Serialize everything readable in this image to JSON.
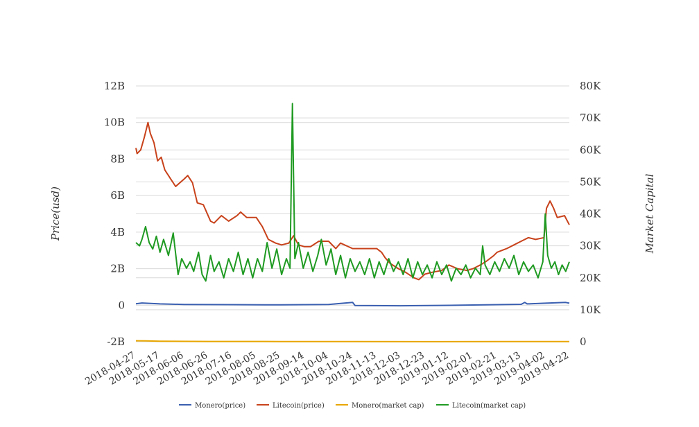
{
  "chart_data": {
    "type": "line",
    "title": "",
    "x": {
      "start_date": "2018-04-27",
      "end_date": "2019-04-22",
      "tick_labels": [
        "2018-04-27",
        "2018-05-17",
        "2018-06-06",
        "2018-06-26",
        "2018-07-16",
        "2018-08-05",
        "2018-08-25",
        "2018-09-14",
        "2018-10-04",
        "2018-10-24",
        "2018-11-13",
        "2018-12-03",
        "2018-12-23",
        "2019-01-12",
        "2019-02-01",
        "2019-02-21",
        "2019-03-13",
        "2019-04-02",
        "2019-04-22"
      ]
    },
    "y_left": {
      "label": "Price(usd)",
      "range": [
        -2000000000,
        12000000000
      ],
      "ticks": [
        -2000000000,
        0,
        2000000000,
        4000000000,
        6000000000,
        8000000000,
        10000000000,
        12000000000
      ],
      "tick_labels": [
        "-2B",
        "0",
        "2B",
        "4B",
        "6B",
        "8B",
        "10B",
        "12B"
      ]
    },
    "y_right": {
      "label": "Market Capital",
      "range": [
        0,
        80000
      ],
      "ticks": [
        0,
        10000,
        20000,
        30000,
        40000,
        50000,
        60000,
        70000,
        80000
      ],
      "tick_labels": [
        "0",
        "10K",
        "20K",
        "30K",
        "40K",
        "50K",
        "60K",
        "70K",
        "80K"
      ]
    },
    "grid": true,
    "legend_position": "bottom",
    "series": [
      {
        "name": "Monero(price)",
        "axis": "left",
        "color": "#3a5fb0",
        "points": [
          [
            "2018-04-27",
            80000000
          ],
          [
            "2018-05-02",
            120000000
          ],
          [
            "2018-05-17",
            70000000
          ],
          [
            "2018-06-06",
            40000000
          ],
          [
            "2018-07-16",
            30000000
          ],
          [
            "2018-08-25",
            20000000
          ],
          [
            "2018-10-04",
            40000000
          ],
          [
            "2018-10-24",
            150000000
          ],
          [
            "2018-10-26",
            -20000000
          ],
          [
            "2018-12-03",
            -30000000
          ],
          [
            "2019-01-12",
            -10000000
          ],
          [
            "2019-02-21",
            30000000
          ],
          [
            "2019-03-13",
            50000000
          ],
          [
            "2019-03-16",
            150000000
          ],
          [
            "2019-03-18",
            70000000
          ],
          [
            "2019-04-02",
            110000000
          ],
          [
            "2019-04-19",
            150000000
          ],
          [
            "2019-04-22",
            110000000
          ]
        ]
      },
      {
        "name": "Litecoin(price)",
        "axis": "left",
        "color": "#c8421b",
        "points": [
          [
            "2018-04-27",
            8600000000
          ],
          [
            "2018-04-28",
            8300000000
          ],
          [
            "2018-05-01",
            8500000000
          ],
          [
            "2018-05-04",
            9200000000
          ],
          [
            "2018-05-07",
            10000000000
          ],
          [
            "2018-05-09",
            9400000000
          ],
          [
            "2018-05-12",
            8900000000
          ],
          [
            "2018-05-15",
            7900000000
          ],
          [
            "2018-05-18",
            8100000000
          ],
          [
            "2018-05-21",
            7400000000
          ],
          [
            "2018-05-26",
            6900000000
          ],
          [
            "2018-05-30",
            6500000000
          ],
          [
            "2018-06-06",
            6900000000
          ],
          [
            "2018-06-09",
            7100000000
          ],
          [
            "2018-06-13",
            6700000000
          ],
          [
            "2018-06-17",
            5600000000
          ],
          [
            "2018-06-22",
            5500000000
          ],
          [
            "2018-06-28",
            4600000000
          ],
          [
            "2018-07-01",
            4500000000
          ],
          [
            "2018-07-07",
            4900000000
          ],
          [
            "2018-07-13",
            4600000000
          ],
          [
            "2018-07-20",
            4900000000
          ],
          [
            "2018-07-23",
            5100000000
          ],
          [
            "2018-07-28",
            4800000000
          ],
          [
            "2018-08-05",
            4800000000
          ],
          [
            "2018-08-10",
            4300000000
          ],
          [
            "2018-08-15",
            3600000000
          ],
          [
            "2018-08-21",
            3400000000
          ],
          [
            "2018-08-26",
            3300000000
          ],
          [
            "2018-09-01",
            3400000000
          ],
          [
            "2018-09-05",
            3800000000
          ],
          [
            "2018-09-09",
            3300000000
          ],
          [
            "2018-09-14",
            3200000000
          ],
          [
            "2018-09-19",
            3200000000
          ],
          [
            "2018-09-26",
            3500000000
          ],
          [
            "2018-10-04",
            3500000000
          ],
          [
            "2018-10-10",
            3100000000
          ],
          [
            "2018-10-14",
            3400000000
          ],
          [
            "2018-10-24",
            3100000000
          ],
          [
            "2018-11-13",
            3100000000
          ],
          [
            "2018-11-17",
            2900000000
          ],
          [
            "2018-11-20",
            2600000000
          ],
          [
            "2018-11-24",
            2300000000
          ],
          [
            "2018-12-01",
            2000000000
          ],
          [
            "2018-12-07",
            1800000000
          ],
          [
            "2018-12-14",
            1500000000
          ],
          [
            "2018-12-18",
            1400000000
          ],
          [
            "2018-12-23",
            1700000000
          ],
          [
            "2018-12-29",
            1800000000
          ],
          [
            "2019-01-06",
            1900000000
          ],
          [
            "2019-01-12",
            2200000000
          ],
          [
            "2019-01-19",
            2000000000
          ],
          [
            "2019-01-27",
            1900000000
          ],
          [
            "2019-02-01",
            2000000000
          ],
          [
            "2019-02-07",
            2200000000
          ],
          [
            "2019-02-12",
            2400000000
          ],
          [
            "2019-02-18",
            2700000000
          ],
          [
            "2019-02-21",
            2900000000
          ],
          [
            "2019-03-01",
            3100000000
          ],
          [
            "2019-03-07",
            3300000000
          ],
          [
            "2019-03-13",
            3500000000
          ],
          [
            "2019-03-19",
            3700000000
          ],
          [
            "2019-03-25",
            3600000000
          ],
          [
            "2019-04-01",
            3700000000
          ],
          [
            "2019-04-03",
            5300000000
          ],
          [
            "2019-04-06",
            5700000000
          ],
          [
            "2019-04-09",
            5300000000
          ],
          [
            "2019-04-12",
            4800000000
          ],
          [
            "2019-04-18",
            4900000000
          ],
          [
            "2019-04-22",
            4400000000
          ]
        ]
      },
      {
        "name": "Monero(market cap)",
        "axis": "right",
        "color": "#e8a600",
        "points": [
          [
            "2018-04-27",
            300
          ],
          [
            "2018-05-05",
            250
          ],
          [
            "2018-05-17",
            150
          ],
          [
            "2018-06-26",
            80
          ],
          [
            "2018-08-25",
            60
          ],
          [
            "2018-10-24",
            50
          ],
          [
            "2018-12-23",
            30
          ],
          [
            "2019-02-21",
            40
          ],
          [
            "2019-04-22",
            60
          ]
        ]
      },
      {
        "name": "Litecoin(market cap)",
        "axis": "right",
        "color": "#1f9a22",
        "points": [
          [
            "2018-04-27",
            31000
          ],
          [
            "2018-04-30",
            30000
          ],
          [
            "2018-05-02",
            32000
          ],
          [
            "2018-05-05",
            36000
          ],
          [
            "2018-05-08",
            31000
          ],
          [
            "2018-05-11",
            29000
          ],
          [
            "2018-05-14",
            33000
          ],
          [
            "2018-05-17",
            28000
          ],
          [
            "2018-05-20",
            32000
          ],
          [
            "2018-05-24",
            27000
          ],
          [
            "2018-05-28",
            34000
          ],
          [
            "2018-06-01",
            21000
          ],
          [
            "2018-06-04",
            26000
          ],
          [
            "2018-06-08",
            23000
          ],
          [
            "2018-06-11",
            25000
          ],
          [
            "2018-06-14",
            22000
          ],
          [
            "2018-06-18",
            28000
          ],
          [
            "2018-06-21",
            21000
          ],
          [
            "2018-06-24",
            19000
          ],
          [
            "2018-06-28",
            27000
          ],
          [
            "2018-07-01",
            22000
          ],
          [
            "2018-07-05",
            25000
          ],
          [
            "2018-07-09",
            20000
          ],
          [
            "2018-07-13",
            26000
          ],
          [
            "2018-07-17",
            22000
          ],
          [
            "2018-07-21",
            28000
          ],
          [
            "2018-07-25",
            21000
          ],
          [
            "2018-07-29",
            26000
          ],
          [
            "2018-08-02",
            20000
          ],
          [
            "2018-08-06",
            26000
          ],
          [
            "2018-08-10",
            22000
          ],
          [
            "2018-08-14",
            31000
          ],
          [
            "2018-08-18",
            23000
          ],
          [
            "2018-08-22",
            29000
          ],
          [
            "2018-08-26",
            21000
          ],
          [
            "2018-08-30",
            26000
          ],
          [
            "2018-09-02",
            23000
          ],
          [
            "2018-09-04",
            74500
          ],
          [
            "2018-09-06",
            26000
          ],
          [
            "2018-09-09",
            31000
          ],
          [
            "2018-09-13",
            23000
          ],
          [
            "2018-09-17",
            28000
          ],
          [
            "2018-09-21",
            22000
          ],
          [
            "2018-09-25",
            27000
          ],
          [
            "2018-09-28",
            32000
          ],
          [
            "2018-10-02",
            24000
          ],
          [
            "2018-10-06",
            29000
          ],
          [
            "2018-10-10",
            21000
          ],
          [
            "2018-10-14",
            27000
          ],
          [
            "2018-10-18",
            20000
          ],
          [
            "2018-10-22",
            26000
          ],
          [
            "2018-10-26",
            22000
          ],
          [
            "2018-10-30",
            25000
          ],
          [
            "2018-11-03",
            21000
          ],
          [
            "2018-11-07",
            26000
          ],
          [
            "2018-11-11",
            20000
          ],
          [
            "2018-11-15",
            25000
          ],
          [
            "2018-11-19",
            21000
          ],
          [
            "2018-11-23",
            26000
          ],
          [
            "2018-11-27",
            22000
          ],
          [
            "2018-12-01",
            25000
          ],
          [
            "2018-12-05",
            21000
          ],
          [
            "2018-12-09",
            26000
          ],
          [
            "2018-12-13",
            20000
          ],
          [
            "2018-12-17",
            25000
          ],
          [
            "2018-12-21",
            21000
          ],
          [
            "2018-12-25",
            24000
          ],
          [
            "2018-12-29",
            20000
          ],
          [
            "2019-01-02",
            25000
          ],
          [
            "2019-01-06",
            21000
          ],
          [
            "2019-01-10",
            24000
          ],
          [
            "2019-01-14",
            19000
          ],
          [
            "2019-01-18",
            23000
          ],
          [
            "2019-01-22",
            21000
          ],
          [
            "2019-01-26",
            24000
          ],
          [
            "2019-01-30",
            20000
          ],
          [
            "2019-02-03",
            23000
          ],
          [
            "2019-02-07",
            21000
          ],
          [
            "2019-02-09",
            30000
          ],
          [
            "2019-02-11",
            24000
          ],
          [
            "2019-02-15",
            21000
          ],
          [
            "2019-02-19",
            25000
          ],
          [
            "2019-02-23",
            22000
          ],
          [
            "2019-02-27",
            26000
          ],
          [
            "2019-03-03",
            23000
          ],
          [
            "2019-03-07",
            27000
          ],
          [
            "2019-03-11",
            21000
          ],
          [
            "2019-03-15",
            25000
          ],
          [
            "2019-03-19",
            22000
          ],
          [
            "2019-03-23",
            24000
          ],
          [
            "2019-03-27",
            20000
          ],
          [
            "2019-03-31",
            25000
          ],
          [
            "2019-04-02",
            40000
          ],
          [
            "2019-04-04",
            27000
          ],
          [
            "2019-04-07",
            23000
          ],
          [
            "2019-04-10",
            25000
          ],
          [
            "2019-04-13",
            21000
          ],
          [
            "2019-04-16",
            24000
          ],
          [
            "2019-04-19",
            22000
          ],
          [
            "2019-04-22",
            25000
          ]
        ]
      }
    ]
  }
}
